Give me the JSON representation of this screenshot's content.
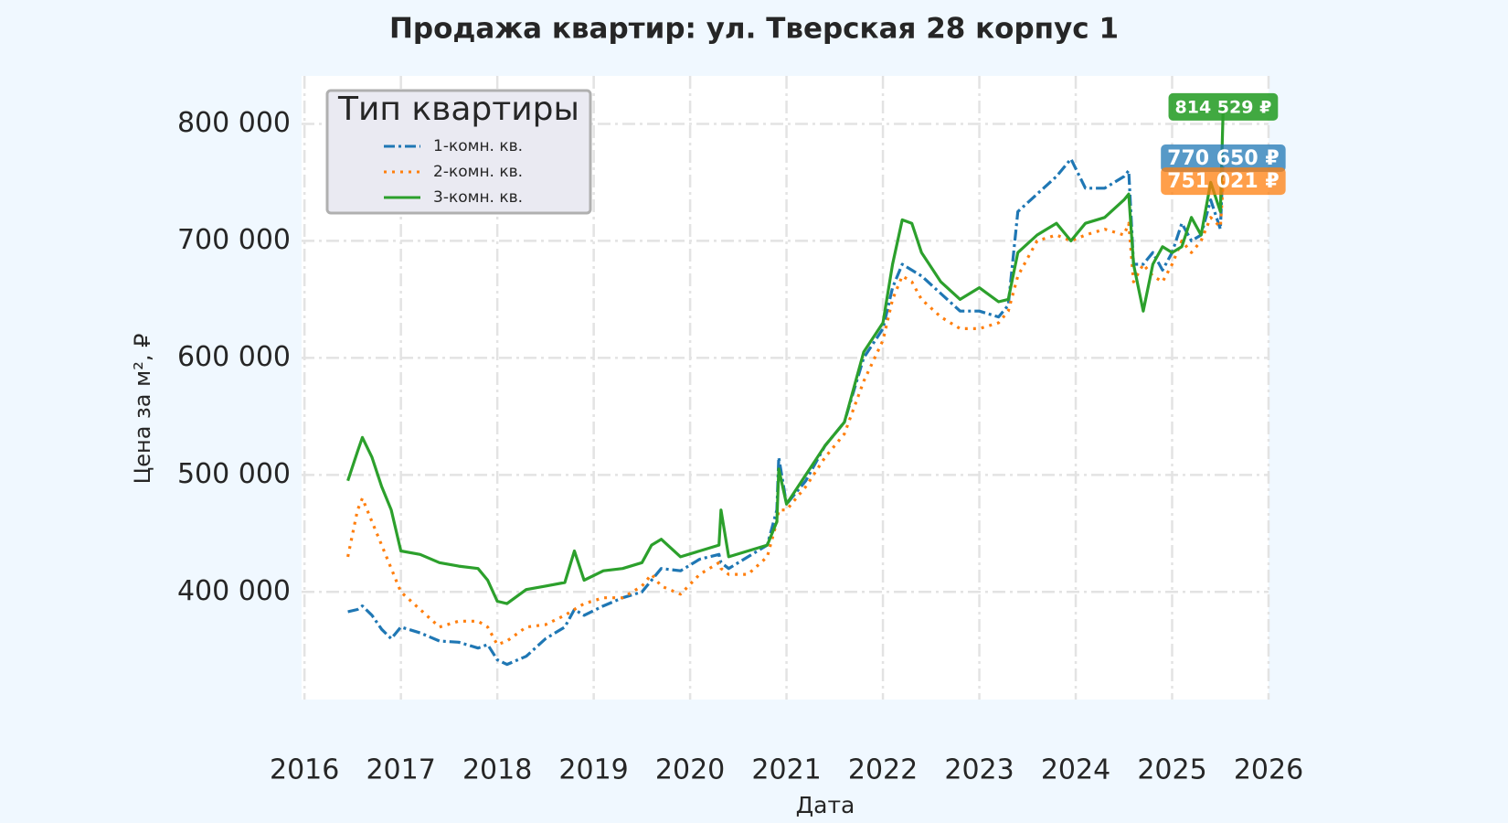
{
  "chart_data": {
    "type": "line",
    "title": "Продажа квартир: ул. Тверская 28 корпус 1",
    "x_label": "Дата",
    "y_label": "Цена за м², ₽",
    "legend_title": "Тип квартиры",
    "legend_position": "upper left",
    "grid": true,
    "xlim": [
      2015.97,
      2026.0
    ],
    "xticks": [
      2016,
      2017,
      2018,
      2019,
      2020,
      2021,
      2022,
      2023,
      2024,
      2025,
      2026
    ],
    "ylim": [
      308000,
      841000
    ],
    "yticks": [
      {
        "value": 400000,
        "label": "400 000"
      },
      {
        "value": 500000,
        "label": "500 000"
      },
      {
        "value": 600000,
        "label": "600 000"
      },
      {
        "value": 700000,
        "label": "700 000"
      },
      {
        "value": 800000,
        "label": "800 000"
      }
    ],
    "x": [
      2016.45,
      2016.55,
      2016.6,
      2016.7,
      2016.8,
      2016.9,
      2017.0,
      2017.2,
      2017.4,
      2017.6,
      2017.8,
      2017.9,
      2018.0,
      2018.1,
      2018.3,
      2018.5,
      2018.7,
      2018.8,
      2018.9,
      2019.1,
      2019.3,
      2019.5,
      2019.6,
      2019.7,
      2019.9,
      2020.1,
      2020.3,
      2020.32,
      2020.4,
      2020.6,
      2020.8,
      2020.9,
      2020.92,
      2021.0,
      2021.2,
      2021.4,
      2021.6,
      2021.8,
      2022.0,
      2022.1,
      2022.2,
      2022.3,
      2022.4,
      2022.6,
      2022.8,
      2023.0,
      2023.2,
      2023.3,
      2023.4,
      2023.6,
      2023.8,
      2023.95,
      2024.1,
      2024.3,
      2024.5,
      2024.55,
      2024.6,
      2024.7,
      2024.8,
      2024.9,
      2025.0,
      2025.1,
      2025.2,
      2025.3,
      2025.4,
      2025.5,
      2025.53
    ],
    "series": [
      {
        "name": "1-комн. кв.",
        "color": "#1f77b4",
        "style": "dashdot",
        "end_label": "770 650 ₽",
        "values": [
          383000,
          385000,
          388000,
          380000,
          368000,
          360000,
          370000,
          365000,
          358000,
          357000,
          352000,
          355000,
          342000,
          338000,
          345000,
          360000,
          370000,
          385000,
          380000,
          388000,
          395000,
          400000,
          410000,
          420000,
          418000,
          428000,
          432000,
          425000,
          420000,
          430000,
          440000,
          470000,
          515000,
          475000,
          495000,
          525000,
          545000,
          600000,
          625000,
          660000,
          680000,
          675000,
          670000,
          655000,
          640000,
          640000,
          635000,
          645000,
          725000,
          740000,
          755000,
          770000,
          745000,
          745000,
          755000,
          760000,
          680000,
          680000,
          690000,
          675000,
          690000,
          715000,
          700000,
          705000,
          735000,
          710000,
          770650
        ]
      },
      {
        "name": "2-комн. кв.",
        "color": "#ff7f0e",
        "style": "dotted",
        "end_label": "751 021 ₽",
        "values": [
          430000,
          470000,
          480000,
          460000,
          440000,
          420000,
          400000,
          385000,
          370000,
          375000,
          375000,
          370000,
          355000,
          358000,
          370000,
          372000,
          380000,
          385000,
          390000,
          395000,
          395000,
          405000,
          415000,
          405000,
          398000,
          415000,
          425000,
          420000,
          415000,
          415000,
          430000,
          460000,
          470000,
          470000,
          490000,
          515000,
          535000,
          580000,
          615000,
          650000,
          670000,
          665000,
          650000,
          635000,
          625000,
          625000,
          630000,
          640000,
          670000,
          700000,
          705000,
          700000,
          705000,
          710000,
          705000,
          715000,
          665000,
          680000,
          670000,
          665000,
          680000,
          700000,
          690000,
          700000,
          720000,
          712000,
          751021
        ]
      },
      {
        "name": "3-комн. кв.",
        "color": "#2ca02c",
        "style": "solid",
        "end_label": "814 529 ₽",
        "values": [
          495000,
          520000,
          532000,
          515000,
          490000,
          470000,
          435000,
          432000,
          425000,
          422000,
          420000,
          410000,
          392000,
          390000,
          402000,
          405000,
          408000,
          435000,
          410000,
          418000,
          420000,
          425000,
          440000,
          445000,
          430000,
          435000,
          440000,
          470000,
          430000,
          435000,
          440000,
          460000,
          505000,
          475000,
          500000,
          525000,
          545000,
          605000,
          630000,
          680000,
          718000,
          715000,
          690000,
          665000,
          650000,
          660000,
          648000,
          650000,
          690000,
          705000,
          715000,
          700000,
          715000,
          720000,
          735000,
          740000,
          680000,
          640000,
          680000,
          695000,
          690000,
          695000,
          720000,
          705000,
          750000,
          725000,
          814529
        ]
      }
    ]
  }
}
